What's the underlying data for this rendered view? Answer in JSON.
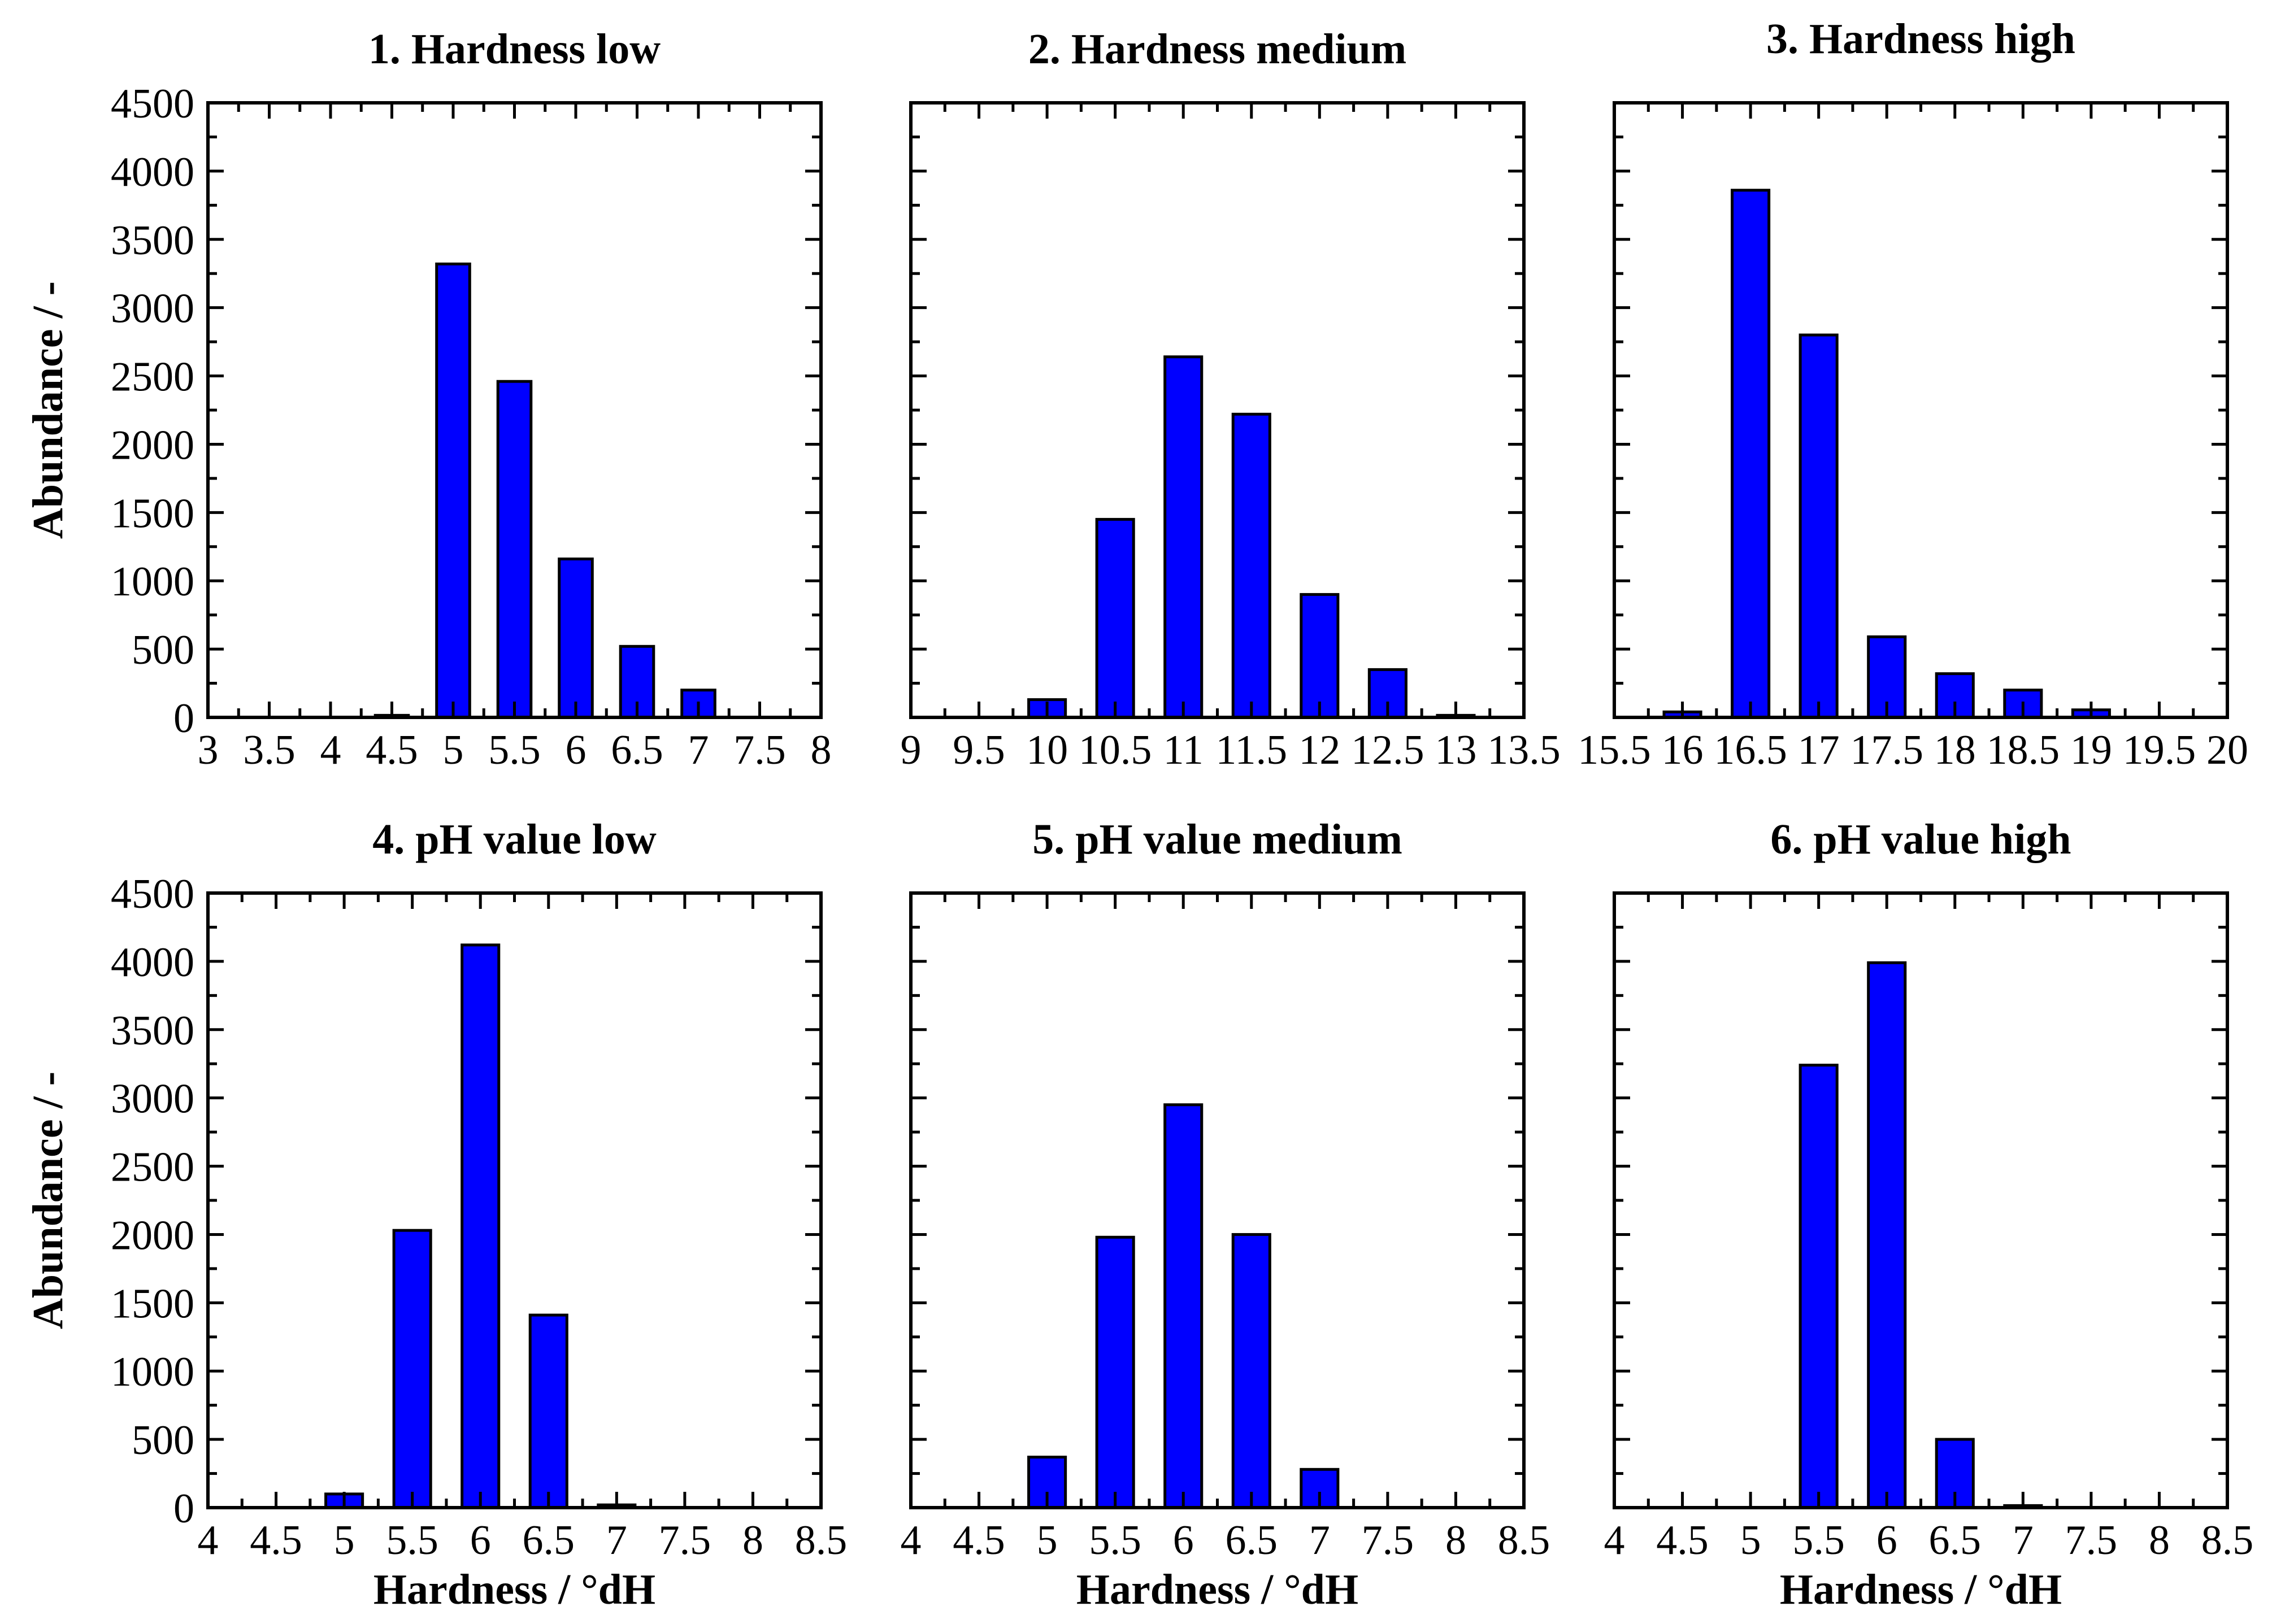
{
  "chart_data": [
    {
      "type": "bar",
      "title": "1. Hardness low",
      "xlabel": "",
      "ylabel": "Abundance / -",
      "xlim": [
        3,
        8
      ],
      "ylim": [
        0,
        4500
      ],
      "xticks": [
        3,
        3.5,
        4,
        4.5,
        5,
        5.5,
        6,
        6.5,
        7,
        7.5,
        8
      ],
      "xtick_labels": [
        "3",
        "3.5",
        "4",
        "4.5",
        "5",
        "5.5",
        "6",
        "6.5",
        "7",
        "7.5",
        "8"
      ],
      "yticks": [
        0,
        500,
        1000,
        1500,
        2000,
        2500,
        3000,
        3500,
        4000,
        4500
      ],
      "ytick_labels": [
        "0",
        "500",
        "1000",
        "1500",
        "2000",
        "2500",
        "3000",
        "3500",
        "4000",
        "4500"
      ],
      "bar_width": 0.27,
      "x": [
        4.5,
        5,
        5.5,
        6,
        6.5,
        7
      ],
      "values": [
        15,
        3320,
        2460,
        1160,
        520,
        200
      ]
    },
    {
      "type": "bar",
      "title": "2. Hardness medium",
      "xlabel": "",
      "ylabel": "",
      "xlim": [
        9,
        13.5
      ],
      "ylim": [
        0,
        4500
      ],
      "xticks": [
        9,
        9.5,
        10,
        10.5,
        11,
        11.5,
        12,
        12.5,
        13,
        13.5
      ],
      "xtick_labels": [
        "9",
        "9.5",
        "10",
        "10.5",
        "11",
        "11.5",
        "12",
        "12.5",
        "13",
        "13.5"
      ],
      "yticks": [
        0,
        500,
        1000,
        1500,
        2000,
        2500,
        3000,
        3500,
        4000,
        4500
      ],
      "ytick_labels": [],
      "bar_width": 0.27,
      "x": [
        10,
        10.5,
        11,
        11.5,
        12,
        12.5,
        13
      ],
      "values": [
        130,
        1450,
        2640,
        2220,
        900,
        350,
        15
      ]
    },
    {
      "type": "bar",
      "title": "3. Hardness high",
      "xlabel": "",
      "ylabel": "",
      "xlim": [
        15.5,
        20
      ],
      "ylim": [
        0,
        4500
      ],
      "xticks": [
        15.5,
        16,
        16.5,
        17,
        17.5,
        18,
        18.5,
        19,
        19.5,
        20
      ],
      "xtick_labels": [
        "15.5",
        "16",
        "16.5",
        "17",
        "17.5",
        "18",
        "18.5",
        "19",
        "19.5",
        "20"
      ],
      "yticks": [
        0,
        500,
        1000,
        1500,
        2000,
        2500,
        3000,
        3500,
        4000,
        4500
      ],
      "ytick_labels": [],
      "bar_width": 0.27,
      "x": [
        16,
        16.5,
        17,
        17.5,
        18,
        18.5,
        19
      ],
      "values": [
        40,
        3860,
        2800,
        590,
        320,
        200,
        55
      ]
    },
    {
      "type": "bar",
      "title": "4. pH value low",
      "xlabel": "Hardness / °dH",
      "ylabel": "Abundance / -",
      "xlim": [
        4,
        8.5
      ],
      "ylim": [
        0,
        4500
      ],
      "xticks": [
        4,
        4.5,
        5,
        5.5,
        6,
        6.5,
        7,
        7.5,
        8,
        8.5
      ],
      "xtick_labels": [
        "4",
        "4.5",
        "5",
        "5.5",
        "6",
        "6.5",
        "7",
        "7.5",
        "8",
        "8.5"
      ],
      "yticks": [
        0,
        500,
        1000,
        1500,
        2000,
        2500,
        3000,
        3500,
        4000,
        4500
      ],
      "ytick_labels": [
        "0",
        "500",
        "1000",
        "1500",
        "2000",
        "2500",
        "3000",
        "3500",
        "4000",
        "4500"
      ],
      "bar_width": 0.27,
      "x": [
        5,
        5.5,
        6,
        6.5,
        7
      ],
      "values": [
        100,
        2030,
        4120,
        1410,
        20
      ]
    },
    {
      "type": "bar",
      "title": "5. pH value medium",
      "xlabel": "Hardness / °dH",
      "ylabel": "",
      "xlim": [
        4,
        8.5
      ],
      "ylim": [
        0,
        4500
      ],
      "xticks": [
        4,
        4.5,
        5,
        5.5,
        6,
        6.5,
        7,
        7.5,
        8,
        8.5
      ],
      "xtick_labels": [
        "4",
        "4.5",
        "5",
        "5.5",
        "6",
        "6.5",
        "7",
        "7.5",
        "8",
        "8.5"
      ],
      "yticks": [
        0,
        500,
        1000,
        1500,
        2000,
        2500,
        3000,
        3500,
        4000,
        4500
      ],
      "ytick_labels": [],
      "bar_width": 0.27,
      "x": [
        5,
        5.5,
        6,
        6.5,
        7
      ],
      "values": [
        370,
        1980,
        2950,
        2000,
        280
      ]
    },
    {
      "type": "bar",
      "title": "6. pH value high",
      "xlabel": "Hardness / °dH",
      "ylabel": "",
      "xlim": [
        4,
        8.5
      ],
      "ylim": [
        0,
        4500
      ],
      "xticks": [
        4,
        4.5,
        5,
        5.5,
        6,
        6.5,
        7,
        7.5,
        8,
        8.5
      ],
      "xtick_labels": [
        "4",
        "4.5",
        "5",
        "5.5",
        "6",
        "6.5",
        "7",
        "7.5",
        "8",
        "8.5"
      ],
      "yticks": [
        0,
        500,
        1000,
        1500,
        2000,
        2500,
        3000,
        3500,
        4000,
        4500
      ],
      "ytick_labels": [],
      "bar_width": 0.27,
      "x": [
        5.5,
        6,
        6.5,
        7
      ],
      "values": [
        3240,
        3990,
        500,
        15
      ]
    }
  ],
  "colors": {
    "bar_fill": "#0000FF",
    "bar_outline": "#000000",
    "axis": "#000000",
    "background": "#FFFFFF"
  }
}
